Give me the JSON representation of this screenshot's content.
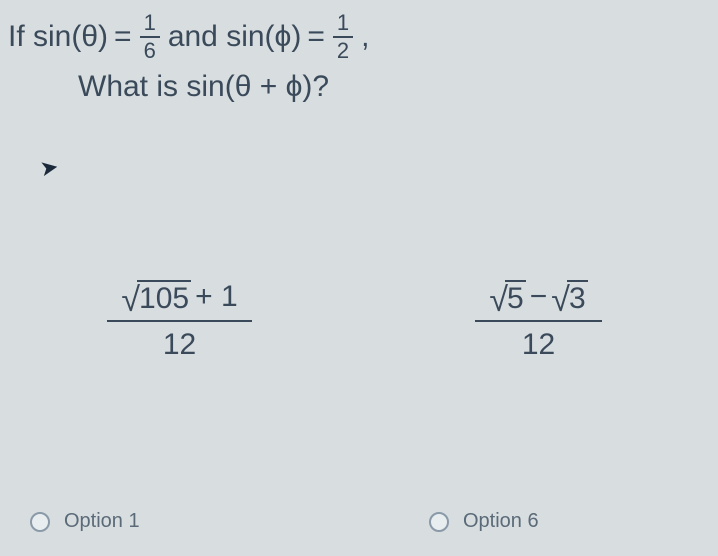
{
  "question": {
    "prefix": "If sin(θ)",
    "eq1": "=",
    "frac1": {
      "num": "1",
      "den": "6"
    },
    "mid": "and sin(ϕ)",
    "eq2": "=",
    "frac2": {
      "num": "1",
      "den": "2"
    },
    "tail": ",",
    "line2": "What is sin(θ + ϕ)?"
  },
  "options": {
    "left": {
      "sqrt_val": "105",
      "plus": " + 1",
      "den": "12",
      "label": "Option 1"
    },
    "right": {
      "sqrt_a": "5",
      "op": " − ",
      "sqrt_b": "3",
      "den": "12",
      "label": "Option 6"
    }
  },
  "colors": {
    "background": "#d8dde0",
    "text": "#3a4a5a",
    "muted": "#5a6a78",
    "radio_border": "#8a9aa8"
  }
}
